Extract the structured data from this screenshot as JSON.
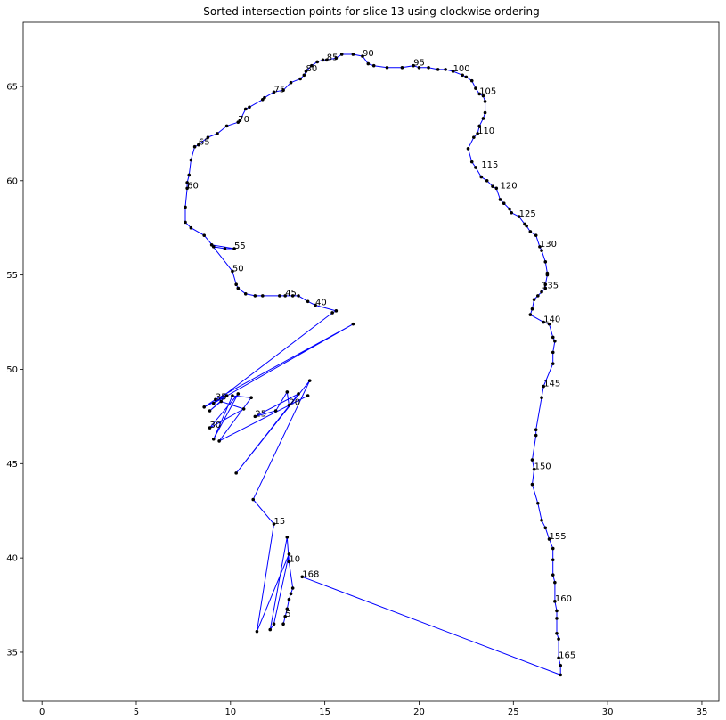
{
  "chart_data": {
    "type": "line",
    "title": "Sorted intersection points for slice 13 using clockwise ordering",
    "xlabel": "",
    "ylabel": "",
    "xlim": [
      -1,
      35.9
    ],
    "ylim": [
      32.4,
      68.4
    ],
    "xticks": [
      0,
      5,
      10,
      15,
      20,
      25,
      30,
      35
    ],
    "yticks": [
      35,
      40,
      45,
      50,
      55,
      60,
      65
    ],
    "grid": false,
    "line_color": "#0000ff",
    "marker_color": "#000000",
    "points": [
      [
        12.8,
        36.5
      ],
      [
        12.9,
        36.9
      ],
      [
        13.0,
        37.3
      ],
      [
        13.1,
        37.8
      ],
      [
        13.2,
        38.1
      ],
      [
        13.3,
        38.4
      ],
      [
        13.1,
        39.8
      ],
      [
        13.0,
        41.1
      ],
      [
        12.1,
        36.2
      ],
      [
        12.3,
        36.5
      ],
      [
        13.1,
        40.2
      ],
      [
        11.4,
        36.1
      ],
      [
        12.3,
        41.8
      ],
      [
        11.2,
        43.1
      ],
      [
        14.2,
        49.4
      ],
      [
        10.3,
        44.5
      ],
      [
        13.6,
        48.7
      ],
      [
        11.3,
        47.5
      ],
      [
        12.4,
        47.8
      ],
      [
        13.0,
        48.8
      ],
      [
        13.1,
        48.1
      ],
      [
        14.1,
        48.6
      ],
      [
        9.4,
        46.2
      ],
      [
        11.1,
        48.5
      ],
      [
        10.1,
        48.6
      ],
      [
        9.1,
        46.3
      ],
      [
        10.4,
        48.7
      ],
      [
        8.9,
        46.9
      ],
      [
        10.7,
        47.9
      ],
      [
        9.5,
        48.3
      ],
      [
        8.9,
        47.8
      ],
      [
        9.8,
        48.6
      ],
      [
        8.6,
        48.0
      ],
      [
        9.2,
        48.4
      ],
      [
        16.5,
        52.4
      ],
      [
        9.1,
        48.2
      ],
      [
        15.4,
        53.0
      ],
      [
        15.6,
        53.1
      ],
      [
        14.5,
        53.4
      ],
      [
        14.1,
        53.6
      ],
      [
        13.6,
        53.9
      ],
      [
        13.3,
        53.9
      ],
      [
        12.9,
        53.9
      ],
      [
        12.6,
        53.9
      ],
      [
        11.7,
        53.9
      ],
      [
        11.3,
        53.9
      ],
      [
        10.8,
        54.0
      ],
      [
        10.4,
        54.3
      ],
      [
        10.3,
        54.5
      ],
      [
        10.1,
        55.2
      ],
      [
        9.0,
        56.6
      ],
      [
        10.2,
        56.4
      ],
      [
        9.7,
        56.4
      ],
      [
        9.1,
        56.5
      ],
      [
        8.6,
        57.1
      ],
      [
        7.9,
        57.5
      ],
      [
        7.6,
        57.8
      ],
      [
        7.6,
        58.6
      ],
      [
        7.7,
        59.6
      ],
      [
        7.7,
        59.9
      ],
      [
        7.8,
        60.3
      ],
      [
        7.9,
        61.1
      ],
      [
        8.1,
        61.8
      ],
      [
        8.3,
        61.9
      ],
      [
        8.8,
        62.3
      ],
      [
        9.3,
        62.5
      ],
      [
        9.8,
        62.9
      ],
      [
        10.4,
        63.1
      ],
      [
        10.5,
        63.2
      ],
      [
        10.8,
        63.8
      ],
      [
        11.0,
        63.9
      ],
      [
        11.7,
        64.3
      ],
      [
        11.8,
        64.4
      ],
      [
        12.3,
        64.7
      ],
      [
        12.8,
        64.8
      ],
      [
        13.2,
        65.2
      ],
      [
        13.7,
        65.4
      ],
      [
        13.9,
        65.6
      ],
      [
        14.0,
        65.8
      ],
      [
        14.3,
        66.1
      ],
      [
        14.6,
        66.3
      ],
      [
        14.9,
        66.4
      ],
      [
        15.1,
        66.4
      ],
      [
        15.6,
        66.5
      ],
      [
        15.9,
        66.7
      ],
      [
        16.5,
        66.7
      ],
      [
        17.0,
        66.6
      ],
      [
        17.3,
        66.2
      ],
      [
        17.6,
        66.1
      ],
      [
        18.3,
        66.0
      ],
      [
        19.1,
        66.0
      ],
      [
        19.7,
        66.1
      ],
      [
        20.0,
        66.0
      ],
      [
        20.5,
        66.0
      ],
      [
        21.0,
        65.9
      ],
      [
        21.4,
        65.9
      ],
      [
        21.8,
        65.8
      ],
      [
        22.3,
        65.6
      ],
      [
        22.5,
        65.5
      ],
      [
        22.8,
        65.3
      ],
      [
        23.0,
        64.9
      ],
      [
        23.2,
        64.6
      ],
      [
        23.4,
        64.5
      ],
      [
        23.5,
        64.2
      ],
      [
        23.5,
        63.6
      ],
      [
        23.4,
        63.3
      ],
      [
        23.2,
        62.9
      ],
      [
        23.1,
        62.5
      ],
      [
        22.9,
        62.3
      ],
      [
        22.6,
        61.7
      ],
      [
        22.8,
        61.0
      ],
      [
        23.0,
        60.7
      ],
      [
        23.3,
        60.2
      ],
      [
        23.6,
        60.0
      ],
      [
        23.9,
        59.7
      ],
      [
        24.1,
        59.6
      ],
      [
        24.3,
        59.0
      ],
      [
        24.5,
        58.8
      ],
      [
        24.8,
        58.5
      ],
      [
        24.9,
        58.3
      ],
      [
        25.3,
        58.1
      ],
      [
        25.6,
        57.7
      ],
      [
        25.7,
        57.6
      ],
      [
        25.9,
        57.3
      ],
      [
        26.2,
        57.1
      ],
      [
        26.4,
        56.5
      ],
      [
        26.5,
        56.3
      ],
      [
        26.7,
        55.7
      ],
      [
        26.8,
        55.1
      ],
      [
        26.8,
        55.0
      ],
      [
        26.7,
        54.5
      ],
      [
        26.7,
        54.3
      ],
      [
        26.5,
        54.1
      ],
      [
        26.3,
        53.9
      ],
      [
        26.1,
        53.7
      ],
      [
        26.0,
        53.2
      ],
      [
        25.9,
        52.9
      ],
      [
        26.6,
        52.5
      ],
      [
        26.9,
        52.4
      ],
      [
        27.1,
        51.7
      ],
      [
        27.2,
        51.5
      ],
      [
        27.1,
        50.9
      ],
      [
        27.1,
        50.3
      ],
      [
        26.6,
        49.1
      ],
      [
        26.5,
        48.5
      ],
      [
        26.2,
        46.8
      ],
      [
        26.2,
        46.5
      ],
      [
        26.0,
        45.2
      ],
      [
        26.1,
        44.7
      ],
      [
        26.0,
        43.9
      ],
      [
        26.3,
        42.9
      ],
      [
        26.5,
        42.0
      ],
      [
        26.7,
        41.6
      ],
      [
        26.9,
        41.0
      ],
      [
        27.1,
        40.5
      ],
      [
        27.1,
        39.9
      ],
      [
        27.1,
        39.1
      ],
      [
        27.2,
        38.7
      ],
      [
        27.2,
        37.7
      ],
      [
        27.3,
        37.2
      ],
      [
        27.3,
        36.8
      ],
      [
        27.3,
        36.0
      ],
      [
        27.4,
        35.7
      ],
      [
        27.4,
        34.7
      ],
      [
        27.5,
        34.3
      ],
      [
        27.5,
        33.8
      ],
      [
        13.8,
        39.0
      ]
    ],
    "annotations": [
      {
        "text": "5",
        "x": 12.9,
        "y": 36.9
      },
      {
        "text": "10",
        "x": 13.1,
        "y": 39.8
      },
      {
        "text": "15",
        "x": 12.3,
        "y": 41.8
      },
      {
        "text": "20",
        "x": 13.1,
        "y": 48.1
      },
      {
        "text": "25",
        "x": 11.3,
        "y": 47.5
      },
      {
        "text": "30",
        "x": 8.9,
        "y": 46.9
      },
      {
        "text": "35",
        "x": 9.2,
        "y": 48.4
      },
      {
        "text": "40",
        "x": 14.5,
        "y": 53.4
      },
      {
        "text": "45",
        "x": 12.9,
        "y": 53.9
      },
      {
        "text": "50",
        "x": 10.1,
        "y": 55.2
      },
      {
        "text": "55",
        "x": 10.2,
        "y": 56.4
      },
      {
        "text": "60",
        "x": 7.7,
        "y": 59.6
      },
      {
        "text": "65",
        "x": 8.3,
        "y": 61.9
      },
      {
        "text": "70",
        "x": 10.4,
        "y": 63.1
      },
      {
        "text": "75",
        "x": 12.3,
        "y": 64.7
      },
      {
        "text": "80",
        "x": 14.0,
        "y": 65.8
      },
      {
        "text": "85",
        "x": 15.1,
        "y": 66.4
      },
      {
        "text": "90",
        "x": 17.0,
        "y": 66.6
      },
      {
        "text": "95",
        "x": 19.7,
        "y": 66.1
      },
      {
        "text": "100",
        "x": 21.8,
        "y": 65.8
      },
      {
        "text": "105",
        "x": 23.2,
        "y": 64.6
      },
      {
        "text": "110",
        "x": 23.1,
        "y": 62.5
      },
      {
        "text": "115",
        "x": 23.3,
        "y": 60.7
      },
      {
        "text": "120",
        "x": 24.3,
        "y": 59.6
      },
      {
        "text": "125",
        "x": 25.3,
        "y": 58.1
      },
      {
        "text": "130",
        "x": 26.4,
        "y": 56.5
      },
      {
        "text": "135",
        "x": 26.5,
        "y": 54.3
      },
      {
        "text": "140",
        "x": 26.6,
        "y": 52.5
      },
      {
        "text": "145",
        "x": 26.6,
        "y": 49.1
      },
      {
        "text": "150",
        "x": 26.1,
        "y": 44.7
      },
      {
        "text": "155",
        "x": 26.9,
        "y": 41.0
      },
      {
        "text": "160",
        "x": 27.2,
        "y": 37.7
      },
      {
        "text": "165",
        "x": 27.4,
        "y": 34.7
      },
      {
        "text": "168",
        "x": 13.8,
        "y": 39.0
      }
    ]
  }
}
